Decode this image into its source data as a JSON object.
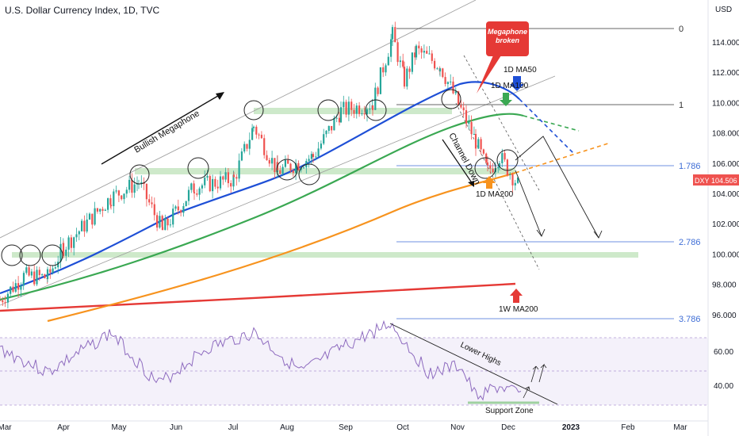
{
  "header": {
    "title": "U.S. Dollar Currency Index, 1D, TVC"
  },
  "axis": {
    "currency": "USD",
    "y_ticks": [
      "114.000",
      "112.000",
      "110.000",
      "108.000",
      "106.000",
      "104.000",
      "102.000",
      "100.000",
      "98.000",
      "96.000"
    ],
    "rsi_ticks": [
      "60.00",
      "40.00"
    ],
    "x_ticks": [
      "Mar",
      "Apr",
      "May",
      "Jun",
      "Jul",
      "Aug",
      "Sep",
      "Oct",
      "Nov",
      "Dec",
      "2023",
      "Feb",
      "Mar"
    ]
  },
  "price_tag": {
    "symbol": "DXY",
    "value": "104.506"
  },
  "fib": [
    "0",
    "1",
    "1.786",
    "2.786",
    "3.786"
  ],
  "annotations": {
    "megaphone_callout": "Megaphone broken",
    "bullish": "Bullish Megaphone",
    "channel": "Channel Down",
    "ma50": "1D MA50",
    "ma100": "1D MA100",
    "ma200": "1D MA200",
    "w200": "1W MA200",
    "lower_highs": "Lower Highs",
    "support": "Support Zone"
  },
  "colors": {
    "ma50": "#1e4fd6",
    "ma100": "#3aa852",
    "ma200": "#f7931e",
    "w200": "#e53935",
    "rsi": "#8e6bbf",
    "candle_up": "#26a69a",
    "candle_down": "#ef5350"
  },
  "chart_data": {
    "type": "candlestick",
    "y_axis_range": [
      95,
      115
    ],
    "control_points": [
      {
        "x": "Mar",
        "price": 97.0
      },
      {
        "x": "Mar",
        "price": 98.6
      },
      {
        "x": "Apr",
        "price": 98.5
      },
      {
        "x": "Apr",
        "price": 100.5
      },
      {
        "x": "May",
        "price": 103.8
      },
      {
        "x": "May",
        "price": 104.8
      },
      {
        "x": "Jun",
        "price": 101.6
      },
      {
        "x": "Jun",
        "price": 104.5
      },
      {
        "x": "Jul",
        "price": 105.0
      },
      {
        "x": "Jul",
        "price": 108.5
      },
      {
        "x": "Aug",
        "price": 105.5
      },
      {
        "x": "Aug",
        "price": 106.5
      },
      {
        "x": "Sep",
        "price": 109.5
      },
      {
        "x": "Sep",
        "price": 110.0
      },
      {
        "x": "Oct",
        "price": 114.5
      },
      {
        "x": "Oct",
        "price": 111.5
      },
      {
        "x": "Oct",
        "price": 113.5
      },
      {
        "x": "Nov",
        "price": 112.5
      },
      {
        "x": "Nov",
        "price": 107.5
      },
      {
        "x": "Nov",
        "price": 105.5
      },
      {
        "x": "Dec",
        "price": 106.5
      },
      {
        "x": "Dec",
        "price": 104.5
      }
    ],
    "last_price": 104.506,
    "fib_levels": [
      {
        "name": "0",
        "value": 114.7
      },
      {
        "name": "1",
        "value": 110.0
      },
      {
        "name": "1.786",
        "value": 105.7
      },
      {
        "name": "2.786",
        "value": 100.2
      },
      {
        "name": "3.786",
        "value": 94.7
      }
    ],
    "moving_averages": [
      "1D MA50",
      "1D MA100",
      "1D MA200",
      "1W MA200"
    ],
    "rsi_ticks": [
      60,
      40
    ]
  }
}
